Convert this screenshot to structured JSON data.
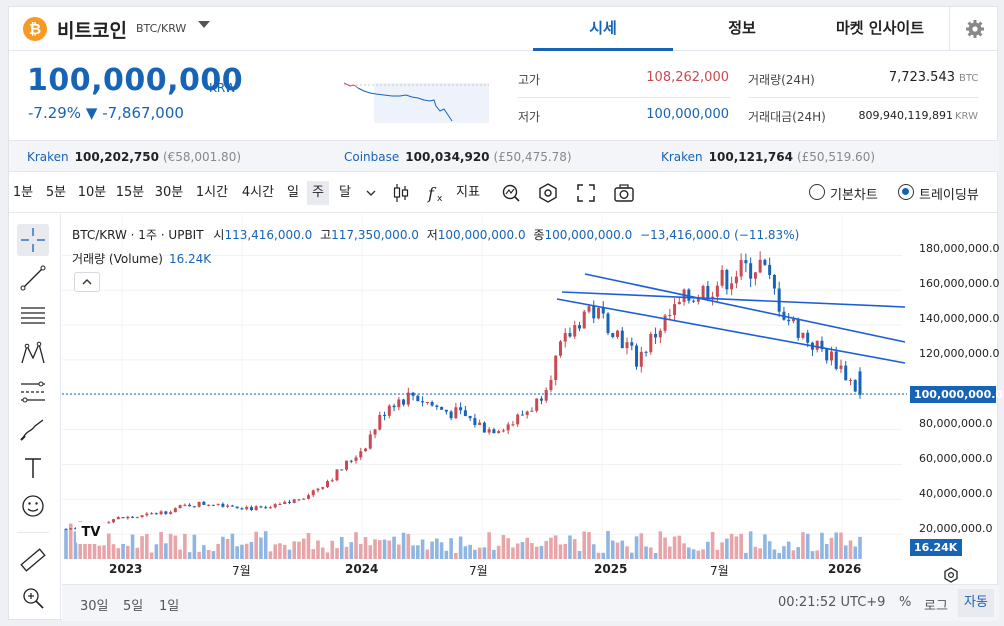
{
  "header": {
    "coin_symbol": "₿",
    "coin_name": "비트코인",
    "pair": "BTC/KRW",
    "tabs": [
      {
        "label": "시세",
        "active": true
      },
      {
        "label": "정보",
        "active": false
      },
      {
        "label": "마켓 인사이트",
        "active": false
      }
    ]
  },
  "price": {
    "current": "100,000,000",
    "unit": "KRW",
    "change_pct": "-7.29%",
    "change_arrow": "▼",
    "change_abs": "-7,867,000"
  },
  "stats": {
    "high_label": "고가",
    "high": "108,262,000",
    "low_label": "저가",
    "low": "100,000,000",
    "volume_label": "거래량(24H)",
    "volume": "7,723.543",
    "volume_unit": "BTC",
    "amount_label": "거래대금(24H)",
    "amount": "809,940,119,891",
    "amount_unit": "KRW"
  },
  "exchanges": [
    {
      "name": "Kraken",
      "price": "100,202,750",
      "usd": "(€58,001.80)"
    },
    {
      "name": "Coinbase",
      "price": "100,034,920",
      "usd": "(£50,475.78)"
    },
    {
      "name": "Kraken",
      "price": "100,121,764",
      "usd": "(£50,519.60)"
    }
  ],
  "toolbar": {
    "intervals": [
      {
        "label": "1분",
        "active": false
      },
      {
        "label": "5분",
        "active": false
      },
      {
        "label": "10분",
        "active": false
      },
      {
        "label": "15분",
        "active": false
      },
      {
        "label": "30분",
        "active": false
      },
      {
        "label": "1시간",
        "active": false
      },
      {
        "label": "4시간",
        "active": false
      },
      {
        "label": "일",
        "active": false
      },
      {
        "label": "주",
        "active": true
      },
      {
        "label": "달",
        "active": false
      }
    ],
    "indicator_label": "지표",
    "chart_modes": [
      {
        "label": "기본차트",
        "selected": false
      },
      {
        "label": "트레이딩뷰",
        "selected": true
      }
    ]
  },
  "chart": {
    "legend": {
      "symbol": "BTC/KRW · 1주 · UPBIT",
      "open_label": "시",
      "open": "113,416,000.0",
      "high_label": "고",
      "high": "117,350,000.0",
      "low_label": "저",
      "low": "100,000,000.0",
      "close_label": "종",
      "close": "100,000,000.0",
      "change": "−13,416,000.0 (−11.83%)"
    },
    "volume_legend": {
      "label": "거래량 (Volume)",
      "value": "16.24K"
    },
    "y_labels": [
      "180,000,000.0",
      "160,000,000.0",
      "140,000,000.0",
      "120,000,000.0",
      "80,000,000.0",
      "60,000,000.0",
      "40,000,000.0",
      "20,000,000.0"
    ],
    "last_price_tag": "100,000,000.0",
    "volume_tag": "16.24K",
    "x_labels": [
      {
        "label": "2023",
        "bold": true
      },
      {
        "label": "7월",
        "bold": false
      },
      {
        "label": "2024",
        "bold": true
      },
      {
        "label": "7월",
        "bold": false
      },
      {
        "label": "2025",
        "bold": true
      },
      {
        "label": "7월",
        "bold": false
      },
      {
        "label": "2026",
        "bold": true
      }
    ],
    "colors": {
      "up": "#c84a52",
      "down": "#1763b6",
      "vol_up": "#e8a5a9",
      "vol_down": "#8fb6e2",
      "channel": "#1d5fd6"
    },
    "brand_logo": "TV"
  },
  "chart_data": {
    "type": "candlestick",
    "interval": "1주",
    "symbol": "BTC/KRW",
    "ylim": [
      0,
      190000000
    ],
    "x_ticks": [
      "2023",
      "7월",
      "2024",
      "7월",
      "2025",
      "7월",
      "2026"
    ],
    "series": [
      {
        "name": "close_path",
        "values": [
          23000000,
          25000000,
          29000000,
          30000000,
          33000000,
          37000000,
          38000000,
          36000000,
          34000000,
          38000000,
          45000000,
          56000000,
          70000000,
          95000000,
          100000000,
          92000000,
          88000000,
          80000000,
          84000000,
          96000000,
          128000000,
          150000000,
          140000000,
          120000000,
          140000000,
          155000000,
          162000000,
          170000000,
          175000000,
          145000000,
          130000000,
          120000000,
          100000000
        ]
      }
    ]
  },
  "footer": {
    "ranges": [
      "30일",
      "5일",
      "1일"
    ],
    "time": "00:21:52 UTC+9",
    "percent": "%",
    "log": "로그",
    "auto": "자동"
  }
}
